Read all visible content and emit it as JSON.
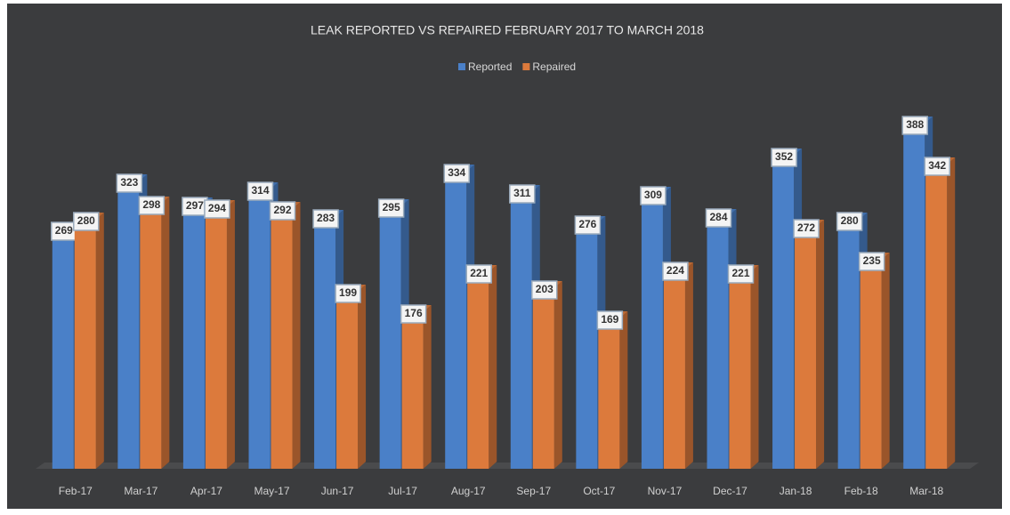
{
  "chart_data": {
    "type": "bar3d",
    "title": "LEAK REPORTED VS REPAIRED FEBRUARY 2017 TO MARCH 2018",
    "categories": [
      "Feb-17",
      "Mar-17",
      "Apr-17",
      "May-17",
      "Jun-17",
      "Jul-17",
      "Aug-17",
      "Sep-17",
      "Oct-17",
      "Nov-17",
      "Dec-17",
      "Jan-18",
      "Feb-18",
      "Mar-18"
    ],
    "series": [
      {
        "name": "Reported",
        "color": "#4a80c8",
        "values": [
          269,
          323,
          297,
          314,
          283,
          295,
          334,
          311,
          276,
          309,
          284,
          352,
          280,
          388
        ]
      },
      {
        "name": "Repaired",
        "color": "#dc7a3c",
        "values": [
          280,
          298,
          294,
          292,
          199,
          176,
          221,
          203,
          169,
          224,
          221,
          272,
          235,
          342
        ]
      }
    ],
    "ylim": [
      0,
      400
    ],
    "legend": "top"
  }
}
